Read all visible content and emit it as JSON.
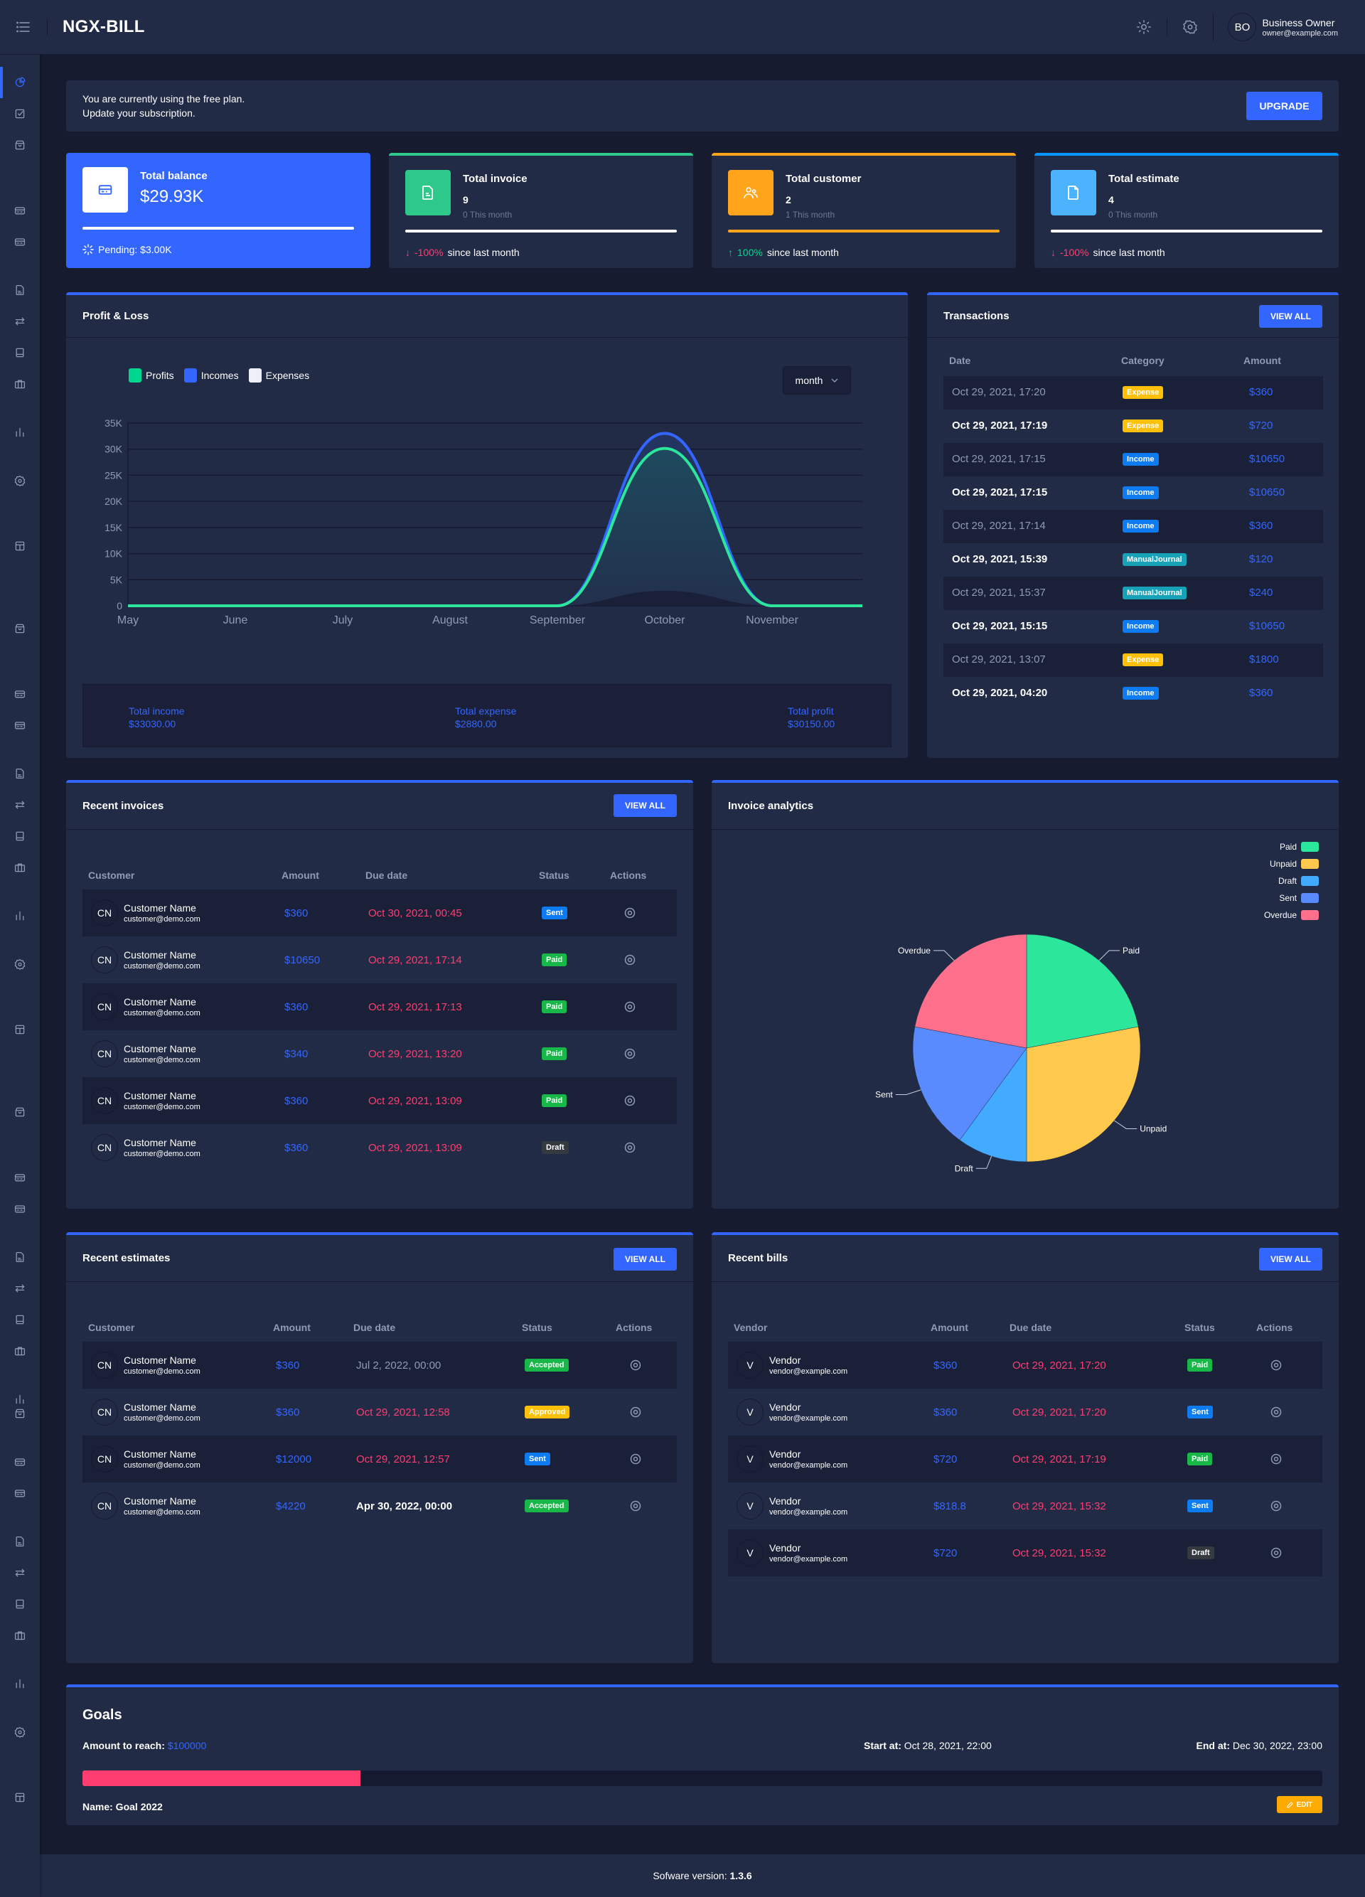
{
  "header": {
    "app_title": "NGX-BILL",
    "user": {
      "initials": "BO",
      "name": "Business Owner",
      "email": "owner@example.com"
    }
  },
  "sidebar": {
    "items": [
      {
        "icon": "pie-chart-icon",
        "y": 20,
        "active": true
      },
      {
        "icon": "checkbox-icon",
        "y": 64
      },
      {
        "icon": "archive-icon",
        "y": 108
      },
      {
        "icon": "credit-card-icon",
        "y": 200
      },
      {
        "icon": "credit-card-icon",
        "y": 244
      },
      {
        "icon": "file-text-icon",
        "y": 312
      },
      {
        "icon": "swap-icon",
        "y": 356
      },
      {
        "icon": "book-icon",
        "y": 400
      },
      {
        "icon": "briefcase-icon",
        "y": 444
      },
      {
        "icon": "bar-chart-icon",
        "y": 512
      },
      {
        "icon": "settings-icon",
        "y": 580
      },
      {
        "icon": "layout-icon",
        "y": 672
      },
      {
        "icon": "archive-icon",
        "y": 788
      },
      {
        "icon": "credit-card-icon",
        "y": 880
      },
      {
        "icon": "credit-card-icon",
        "y": 924
      },
      {
        "icon": "file-text-icon",
        "y": 992
      },
      {
        "icon": "swap-icon",
        "y": 1036
      },
      {
        "icon": "book-icon",
        "y": 1080
      },
      {
        "icon": "briefcase-icon",
        "y": 1124
      },
      {
        "icon": "bar-chart-icon",
        "y": 1192
      },
      {
        "icon": "settings-icon",
        "y": 1260
      },
      {
        "icon": "layout-icon",
        "y": 1352
      },
      {
        "icon": "archive-icon",
        "y": 1468
      },
      {
        "icon": "credit-card-icon",
        "y": 1560
      },
      {
        "icon": "credit-card-icon",
        "y": 1604
      },
      {
        "icon": "file-text-icon",
        "y": 1672
      },
      {
        "icon": "swap-icon",
        "y": 1716
      },
      {
        "icon": "book-icon",
        "y": 1760
      },
      {
        "icon": "briefcase-icon",
        "y": 1804
      },
      {
        "icon": "bar-chart-icon",
        "y": 1872
      },
      {
        "icon": "archive-icon",
        "y": 1892
      },
      {
        "icon": "credit-card-icon",
        "y": 1960
      },
      {
        "icon": "credit-card-icon",
        "y": 2004
      },
      {
        "icon": "file-text-icon",
        "y": 2072
      },
      {
        "icon": "swap-icon",
        "y": 2116
      },
      {
        "icon": "book-icon",
        "y": 2160
      },
      {
        "icon": "briefcase-icon",
        "y": 2204
      },
      {
        "icon": "bar-chart-icon",
        "y": 2272
      },
      {
        "icon": "settings-icon",
        "y": 2340
      },
      {
        "icon": "layout-icon",
        "y": 2432
      }
    ]
  },
  "plan_banner": {
    "line1": "You are currently using the free plan.",
    "line2": "Update your subscription.",
    "button": "UPGRADE"
  },
  "stats": {
    "balance": {
      "title": "Total balance",
      "value": "$29.93K",
      "pending": "Pending: $3.00K"
    },
    "invoice": {
      "title": "Total invoice",
      "count": "9",
      "sub": "0 This month",
      "change": "-100%",
      "suffix": "since last month",
      "color": "#2ec98a"
    },
    "customer": {
      "title": "Total customer",
      "count": "2",
      "sub": "1 This month",
      "change": "100%",
      "suffix": "since last month",
      "color": "#ffa41b"
    },
    "estimate": {
      "title": "Total estimate",
      "count": "4",
      "sub": "0 This month",
      "change": "-100%",
      "suffix": "since last month",
      "color": "#4db3ff"
    }
  },
  "profit_loss": {
    "title": "Profit & Loss",
    "period_select": "month",
    "legend": [
      {
        "label": "Profits",
        "color": "#00d68f"
      },
      {
        "label": "Incomes",
        "color": "#3366ff"
      },
      {
        "label": "Expenses",
        "color": "#edf1f7"
      }
    ],
    "summary": {
      "income_label": "Total income",
      "income_value": "$33030.00",
      "expense_label": "Total expense",
      "expense_value": "$2880.00",
      "profit_label": "Total profit",
      "profit_value": "$30150.00"
    }
  },
  "chart_data": [
    {
      "type": "area",
      "title": "Profit & Loss",
      "categories": [
        "May",
        "June",
        "July",
        "August",
        "September",
        "October",
        "November",
        ""
      ],
      "series": [
        {
          "name": "Profits",
          "values": [
            0,
            0,
            0,
            0,
            0,
            30150,
            0,
            0
          ]
        },
        {
          "name": "Incomes",
          "values": [
            0,
            0,
            0,
            0,
            0,
            33030,
            0,
            0
          ]
        },
        {
          "name": "Expenses",
          "values": [
            0,
            0,
            0,
            0,
            0,
            2880,
            0,
            0
          ]
        }
      ],
      "yticks": [
        "0",
        "5K",
        "10K",
        "15K",
        "20K",
        "25K",
        "30K",
        "35K"
      ],
      "ylim": [
        0,
        35000
      ],
      "grid": true,
      "legend_position": "top-left"
    },
    {
      "type": "pie",
      "title": "Invoice analytics",
      "categories": [
        "Paid",
        "Unpaid",
        "Draft",
        "Sent",
        "Overdue"
      ],
      "values": [
        22,
        28,
        10,
        18,
        22
      ],
      "colors": [
        "#2ce69b",
        "#ffc94d",
        "#42aaff",
        "#598bff",
        "#ff708d"
      ],
      "legend_position": "top-right"
    }
  ],
  "transactions": {
    "title": "Transactions",
    "view_all": "VIEW ALL",
    "columns": [
      "Date",
      "Category",
      "Amount"
    ],
    "rows": [
      {
        "date": "Oct 29, 2021, 17:20",
        "category": "Expense",
        "amount": "$360"
      },
      {
        "date": "Oct 29, 2021, 17:19",
        "category": "Expense",
        "amount": "$720"
      },
      {
        "date": "Oct 29, 2021, 17:15",
        "category": "Income",
        "amount": "$10650"
      },
      {
        "date": "Oct 29, 2021, 17:15",
        "category": "Income",
        "amount": "$10650"
      },
      {
        "date": "Oct 29, 2021, 17:14",
        "category": "Income",
        "amount": "$360"
      },
      {
        "date": "Oct 29, 2021, 15:39",
        "category": "ManualJournal",
        "amount": "$120"
      },
      {
        "date": "Oct 29, 2021, 15:37",
        "category": "ManualJournal",
        "amount": "$240"
      },
      {
        "date": "Oct 29, 2021, 15:15",
        "category": "Income",
        "amount": "$10650"
      },
      {
        "date": "Oct 29, 2021, 13:07",
        "category": "Expense",
        "amount": "$1800"
      },
      {
        "date": "Oct 29, 2021, 04:20",
        "category": "Income",
        "amount": "$360"
      }
    ]
  },
  "recent_invoices": {
    "title": "Recent invoices",
    "view_all": "VIEW ALL",
    "columns": [
      "Customer",
      "Amount",
      "Due date",
      "Status",
      "Actions"
    ],
    "rows": [
      {
        "initials": "CN",
        "name": "Customer Name",
        "email": "customer@demo.com",
        "amount": "$360",
        "due": "Oct 30, 2021, 00:45",
        "status": "Sent"
      },
      {
        "initials": "CN",
        "name": "Customer Name",
        "email": "customer@demo.com",
        "amount": "$10650",
        "due": "Oct 29, 2021, 17:14",
        "status": "Paid"
      },
      {
        "initials": "CN",
        "name": "Customer Name",
        "email": "customer@demo.com",
        "amount": "$360",
        "due": "Oct 29, 2021, 17:13",
        "status": "Paid"
      },
      {
        "initials": "CN",
        "name": "Customer Name",
        "email": "customer@demo.com",
        "amount": "$340",
        "due": "Oct 29, 2021, 13:20",
        "status": "Paid"
      },
      {
        "initials": "CN",
        "name": "Customer Name",
        "email": "customer@demo.com",
        "amount": "$360",
        "due": "Oct 29, 2021, 13:09",
        "status": "Paid"
      },
      {
        "initials": "CN",
        "name": "Customer Name",
        "email": "customer@demo.com",
        "amount": "$360",
        "due": "Oct 29, 2021, 13:09",
        "status": "Draft"
      }
    ]
  },
  "invoice_analytics": {
    "title": "Invoice analytics",
    "legend": [
      "Paid",
      "Unpaid",
      "Draft",
      "Sent",
      "Overdue"
    ]
  },
  "recent_estimates": {
    "title": "Recent estimates",
    "view_all": "VIEW ALL",
    "columns": [
      "Customer",
      "Amount",
      "Due date",
      "Status",
      "Actions"
    ],
    "rows": [
      {
        "initials": "CN",
        "name": "Customer Name",
        "email": "customer@demo.com",
        "amount": "$360",
        "due": "Jul 2, 2022, 00:00",
        "due_style": "muted",
        "status": "Accepted"
      },
      {
        "initials": "CN",
        "name": "Customer Name",
        "email": "customer@demo.com",
        "amount": "$360",
        "due": "Oct 29, 2021, 12:58",
        "due_style": "overdue",
        "status": "Approved"
      },
      {
        "initials": "CN",
        "name": "Customer Name",
        "email": "customer@demo.com",
        "amount": "$12000",
        "due": "Oct 29, 2021, 12:57",
        "due_style": "overdue",
        "status": "Sent"
      },
      {
        "initials": "CN",
        "name": "Customer Name",
        "email": "customer@demo.com",
        "amount": "$4220",
        "due": "Apr 30, 2022, 00:00",
        "due_style": "normal",
        "status": "Accepted"
      }
    ]
  },
  "recent_bills": {
    "title": "Recent bills",
    "view_all": "VIEW ALL",
    "columns": [
      "Vendor",
      "Amount",
      "Due date",
      "Status",
      "Actions"
    ],
    "rows": [
      {
        "initials": "V",
        "name": "Vendor",
        "email": "vendor@example.com",
        "amount": "$360",
        "due": "Oct 29, 2021, 17:20",
        "status": "Paid"
      },
      {
        "initials": "V",
        "name": "Vendor",
        "email": "vendor@example.com",
        "amount": "$360",
        "due": "Oct 29, 2021, 17:20",
        "status": "Sent"
      },
      {
        "initials": "V",
        "name": "Vendor",
        "email": "vendor@example.com",
        "amount": "$720",
        "due": "Oct 29, 2021, 17:19",
        "status": "Paid"
      },
      {
        "initials": "V",
        "name": "Vendor",
        "email": "vendor@example.com",
        "amount": "$818.8",
        "due": "Oct 29, 2021, 15:32",
        "status": "Sent"
      },
      {
        "initials": "V",
        "name": "Vendor",
        "email": "vendor@example.com",
        "amount": "$720",
        "due": "Oct 29, 2021, 15:32",
        "status": "Draft"
      }
    ]
  },
  "goals": {
    "title": "Goals",
    "amount_label": "Amount to reach:",
    "amount_value": "$100000",
    "start_label": "Start at:",
    "start_value": "Oct 28, 2021, 22:00",
    "end_label": "End at:",
    "end_value": "Dec 30, 2022, 23:00",
    "progress_percent": 22.4,
    "name_label": "Name: Goal 2022",
    "edit_button": "EDIT"
  },
  "footer": {
    "label": "Sofware version:",
    "version": "1.3.6"
  },
  "colors": {
    "primary": "#3366ff",
    "success": "#00d68f",
    "danger": "#ff3d71",
    "warning": "#ffaa00",
    "badge_expense": "#ffc107",
    "badge_income": "#0d7cf2",
    "badge_journal": "#17a2b8",
    "badge_paid": "#17b848",
    "badge_sent": "#0d7cf2",
    "badge_draft": "#343a40",
    "badge_approved": "#ffc107",
    "badge_accepted": "#17b848"
  }
}
